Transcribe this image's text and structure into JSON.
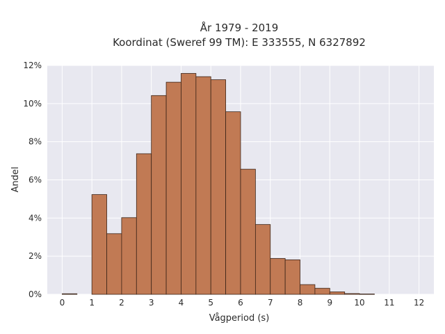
{
  "chart_data": {
    "type": "bar",
    "title": "År 1979 - 2019",
    "subtitle": "Koordinat (Sweref 99 TM): E 333555, N 6327892",
    "xlabel": "Vågperiod (s)",
    "ylabel": "Andel",
    "xlim": [
      -0.5,
      12.5
    ],
    "ylim": [
      0,
      0.12
    ],
    "bin_width": 0.5,
    "x_ticks": [
      0,
      1,
      2,
      3,
      4,
      5,
      6,
      7,
      8,
      9,
      10,
      11,
      12
    ],
    "y_ticks": [
      0,
      0.02,
      0.04,
      0.06,
      0.08,
      0.1,
      0.12
    ],
    "y_tick_labels": [
      "0%",
      "2%",
      "4%",
      "6%",
      "8%",
      "10%",
      "12%"
    ],
    "bin_starts": [
      0,
      1,
      1.5,
      2,
      2.5,
      3,
      3.5,
      4,
      4.5,
      5,
      5.5,
      6,
      6.5,
      7,
      7.5,
      8,
      8.5,
      9,
      9.5,
      10
    ],
    "values": [
      0.0003,
      0.0523,
      0.0318,
      0.0402,
      0.0737,
      0.1042,
      0.1112,
      0.1158,
      0.1141,
      0.1125,
      0.0957,
      0.0656,
      0.0366,
      0.0188,
      0.0181,
      0.0051,
      0.0032,
      0.0013,
      0.0004,
      0.0002
    ],
    "bar_color": "#c17a54",
    "bar_edge_color": "#3b2418",
    "plot_background": "#e8e8f0",
    "grid": true,
    "grid_color": "#ffffff"
  }
}
